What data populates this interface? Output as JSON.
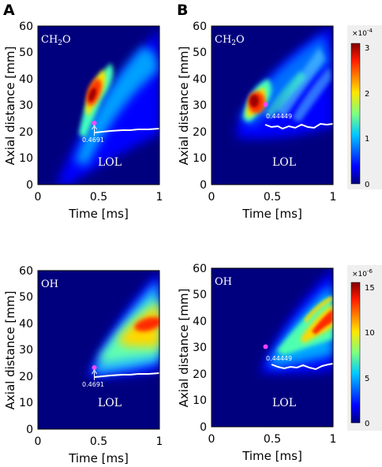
{
  "panel_letters": [
    "A",
    "B"
  ],
  "chart_data": [
    {
      "type": "heatmap",
      "panel": "A",
      "species": "CH2O",
      "species_label": "CH",
      "species_sub": "2",
      "species_tail": "O",
      "xlabel": "Time [ms]",
      "ylabel": "Axial distance [mm]",
      "xlim": [
        0,
        1
      ],
      "ylim": [
        0,
        60
      ],
      "xticks": [
        "0",
        "0.5",
        "1"
      ],
      "yticks": [
        "0",
        "10",
        "20",
        "30",
        "40",
        "50",
        "60"
      ],
      "colormap": "jet",
      "plume": {
        "onset_time": 0.15,
        "tip_slope_mm_per_ms": 70,
        "hot_spot": [
          0.45,
          33
        ],
        "peak": 0.00031
      },
      "marker": {
        "time": 0.4691,
        "distance": 24,
        "label": "0.4691",
        "color": "#ff44ff"
      },
      "lol_label": "LOL",
      "lol_line": {
        "x": [
          0.48,
          0.55,
          0.6,
          0.7,
          0.8,
          0.9,
          1.0
        ],
        "y": [
          20.0,
          20.5,
          20.5,
          21.0,
          21.2,
          21.5,
          21.5
        ]
      }
    },
    {
      "type": "heatmap",
      "panel": "B",
      "species": "CH2O",
      "species_label": "CH",
      "species_sub": "2",
      "species_tail": "O",
      "xlabel": "Time [ms]",
      "ylabel": "Axial distance [mm]",
      "xlim": [
        0,
        1
      ],
      "ylim": [
        0,
        60
      ],
      "xticks": [
        "0",
        "0.5",
        "1"
      ],
      "yticks": [
        "0",
        "10",
        "20",
        "30",
        "40",
        "50",
        "60"
      ],
      "colormap": "jet",
      "colorbar": {
        "min": 0,
        "max": 3.1,
        "ticks": [
          "0",
          "1",
          "2",
          "3"
        ],
        "exponent_base": "×10",
        "exponent": "-4"
      },
      "plume": {
        "onset_time": 0.22,
        "hot_spot": [
          0.38,
          31
        ],
        "peak": 0.00031
      },
      "marker": {
        "time": 0.44449,
        "distance": 30.5,
        "label": "0.44449",
        "color": "#ff44ff"
      },
      "lol_label": "LOL",
      "lol_line": {
        "x": [
          0.45,
          0.5,
          0.55,
          0.6,
          0.65,
          0.7,
          0.75,
          0.8,
          0.85,
          0.9,
          0.95,
          1.0
        ],
        "y": [
          22.5,
          21.5,
          22.0,
          21.5,
          22.5,
          22.0,
          23.0,
          22.5,
          22.0,
          23.5,
          23.0,
          23.5
        ]
      }
    },
    {
      "type": "heatmap",
      "panel": "A",
      "species": "OH",
      "species_label": "OH",
      "species_sub": "",
      "species_tail": "",
      "xlabel": "Time [ms]",
      "ylabel": "Axial distance [mm]",
      "xlim": [
        0,
        1
      ],
      "ylim": [
        0,
        60
      ],
      "xticks": [
        "0",
        "0.5",
        "1"
      ],
      "yticks": [
        "0",
        "10",
        "20",
        "30",
        "40",
        "50",
        "60"
      ],
      "colormap": "jet",
      "plume": {
        "onset_time": 0.45,
        "hot_spot": [
          0.92,
          38
        ],
        "peak": 1.5e-05
      },
      "marker": {
        "time": 0.4691,
        "distance": 24,
        "label": "0.4691",
        "color": "#ff44ff"
      },
      "lol_label": "LOL",
      "lol_line": {
        "x": [
          0.48,
          0.55,
          0.6,
          0.7,
          0.8,
          0.9,
          1.0
        ],
        "y": [
          20.0,
          20.5,
          20.5,
          21.0,
          21.2,
          21.5,
          21.5
        ]
      }
    },
    {
      "type": "heatmap",
      "panel": "B",
      "species": "OH",
      "species_label": "OH",
      "species_sub": "",
      "species_tail": "",
      "xlabel": "Time [ms]",
      "ylabel": "Axial distance [mm]",
      "xlim": [
        0,
        1
      ],
      "ylim": [
        0,
        60
      ],
      "xticks": [
        "0",
        "0.5",
        "1"
      ],
      "yticks": [
        "0",
        "10",
        "20",
        "30",
        "40",
        "50",
        "60"
      ],
      "colormap": "jet",
      "colorbar": {
        "min": 0,
        "max": 15.5,
        "ticks": [
          "0",
          "5",
          "10",
          "15"
        ],
        "exponent_base": "×10",
        "exponent": "-6"
      },
      "plume": {
        "onset_time": 0.43,
        "hot_spot": [
          0.9,
          42
        ],
        "peak": 1.5e-05
      },
      "marker": {
        "time": 0.44449,
        "distance": 30.5,
        "label": "0.44449",
        "color": "#ff44ff"
      },
      "lol_label": "LOL",
      "lol_line": {
        "x": [
          0.5,
          0.55,
          0.6,
          0.65,
          0.7,
          0.75,
          0.8,
          0.85,
          0.9,
          0.95,
          1.0
        ],
        "y": [
          22.5,
          22.0,
          21.0,
          22.0,
          21.5,
          22.5,
          21.5,
          21.0,
          22.5,
          23.0,
          23.5
        ]
      }
    }
  ]
}
